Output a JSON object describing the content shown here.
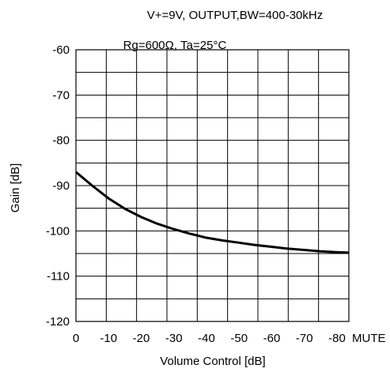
{
  "chart_data": {
    "type": "line",
    "title": "V+=9V, OUTPUT,BW=400-30kHz",
    "subtitle": "Rg=600Ω, Ta=25°C",
    "xlabel": "Volume Control [dB]",
    "ylabel": "Gain   [dB]",
    "x_tick_labels": [
      "0",
      "-10",
      "-20",
      "-30",
      "-40",
      "-50",
      "-60",
      "-70",
      "-80",
      "MUTE"
    ],
    "y_tick_labels": [
      "-60",
      "-70",
      "-80",
      "-90",
      "-100",
      "-110",
      "-120"
    ],
    "x_axis": {
      "direction": "decreasing",
      "range": [
        0,
        -84
      ]
    },
    "ylim": [
      -120,
      -60
    ],
    "grid": true,
    "series": [
      {
        "x": [
          0,
          -5,
          -10,
          -15,
          -20,
          -25,
          -30,
          -35,
          -40,
          -45,
          -50,
          -55,
          -60,
          -65,
          -70,
          -75,
          -80,
          -84
        ],
        "values": [
          -87,
          -90,
          -92.8,
          -95.1,
          -96.9,
          -98.4,
          -99.6,
          -100.6,
          -101.5,
          -102.1,
          -102.6,
          -103.1,
          -103.5,
          -103.9,
          -104.2,
          -104.5,
          -104.7,
          -104.8
        ]
      }
    ]
  }
}
